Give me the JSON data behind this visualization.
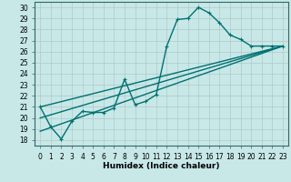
{
  "xlabel": "Humidex (Indice chaleur)",
  "background_color": "#c8e8e8",
  "grid_color": "#b0c8c8",
  "line_color": "#007070",
  "xlim": [
    -0.5,
    23.5
  ],
  "ylim": [
    17.5,
    30.5
  ],
  "xticks": [
    0,
    1,
    2,
    3,
    4,
    5,
    6,
    7,
    8,
    9,
    10,
    11,
    12,
    13,
    14,
    15,
    16,
    17,
    18,
    19,
    20,
    21,
    22,
    23
  ],
  "yticks": [
    18,
    19,
    20,
    21,
    22,
    23,
    24,
    25,
    26,
    27,
    28,
    29,
    30
  ],
  "main_series": {
    "x": [
      0,
      1,
      2,
      3,
      4,
      5,
      6,
      7,
      8,
      9,
      10,
      11,
      12,
      13,
      14,
      15,
      16,
      17,
      18,
      19,
      20,
      21,
      22,
      23
    ],
    "y": [
      21,
      19.2,
      18.1,
      19.7,
      20.6,
      20.5,
      20.5,
      20.9,
      23.5,
      21.2,
      21.5,
      22.1,
      26.5,
      28.9,
      29.0,
      30.0,
      29.5,
      28.6,
      27.5,
      27.1,
      26.5,
      26.5,
      26.5,
      26.5
    ]
  },
  "straight_lines": [
    {
      "x0": 0,
      "y0": 21,
      "x1": 23,
      "y1": 26.5
    },
    {
      "x0": 0,
      "y0": 20,
      "x1": 23,
      "y1": 26.5
    },
    {
      "x0": 0,
      "y0": 18.8,
      "x1": 23,
      "y1": 26.5
    }
  ],
  "xlabel_fontsize": 6.5,
  "tick_fontsize": 5.5,
  "linewidth": 1.0,
  "markersize": 2.5
}
